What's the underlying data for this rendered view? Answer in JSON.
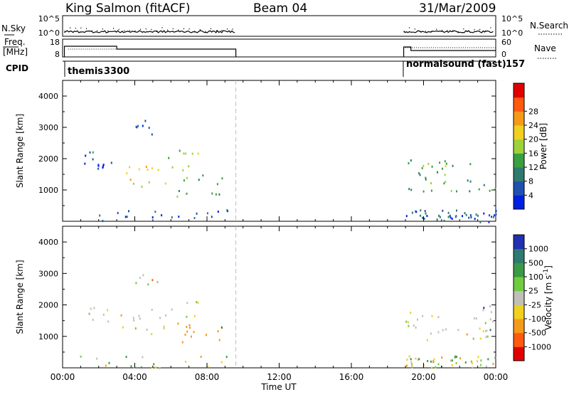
{
  "header": {
    "station": "King Salmon (fitACF)",
    "beam": "Beam 04",
    "date": "31/Mar/2009"
  },
  "status_panels": {
    "left_labels": {
      "nsky": "N.Sky",
      "freq": "Freq.",
      "freq_unit": "[MHz]",
      "cpid": "CPID"
    },
    "right_labels": {
      "nsearch": "N.Search",
      "nave": "Nave"
    },
    "nsky_ticks": [
      "10^5",
      "10^0"
    ],
    "freq_ticks": [
      "18",
      "8"
    ],
    "nave_ticks": [
      "60",
      "0"
    ],
    "nsearch_ticks": [
      "10^5",
      "10^0"
    ],
    "cpid_entries": [
      {
        "name": "themis",
        "id": "3300"
      },
      {
        "name": "normalsound (fast)",
        "id": "157"
      }
    ]
  },
  "chart_data": [
    {
      "type": "heatmap",
      "title": "",
      "xlabel": "Time UT",
      "ylabel": "Slant Range [km]",
      "xlim_hours": [
        0,
        24
      ],
      "ylim_km": [
        0,
        4500
      ],
      "x_ticks": [
        "00:00",
        "04:00",
        "08:00",
        "12:00",
        "16:00",
        "20:00",
        "00:00"
      ],
      "y_ticks": [
        1000,
        2000,
        3000,
        4000
      ],
      "colorbar": {
        "label": "Power [dB]",
        "ticks": [
          4,
          8,
          12,
          16,
          20,
          24,
          28
        ],
        "range": [
          0,
          30
        ],
        "colors": [
          "#0020e0",
          "#2050b0",
          "#2f7a70",
          "#39a040",
          "#9fd23a",
          "#f0d020",
          "#f59a18",
          "#ff5a10",
          "#e00000"
        ]
      },
      "data_gap_hours": [
        9.6,
        18.9
      ],
      "scatter_regions": [
        {
          "t": [
            0.5,
            2.8
          ],
          "r": [
            1500,
            2300
          ],
          "mean": 4
        },
        {
          "t": [
            3.0,
            5.8
          ],
          "r": [
            1100,
            1800
          ],
          "mean": 18
        },
        {
          "t": [
            5.8,
            7.5
          ],
          "r": [
            1500,
            2300
          ],
          "mean": 14
        },
        {
          "t": [
            6.2,
            9.0
          ],
          "r": [
            800,
            1500
          ],
          "mean": 12
        },
        {
          "t": [
            4.0,
            5.5
          ],
          "r": [
            2600,
            3300
          ],
          "mean": 6
        },
        {
          "t": [
            19.0,
            24.0
          ],
          "r": [
            900,
            2000
          ],
          "mean": 12
        }
      ]
    },
    {
      "type": "heatmap",
      "title": "",
      "xlabel": "Time UT",
      "ylabel": "Slant Range [km]",
      "xlim_hours": [
        0,
        24
      ],
      "ylim_km": [
        0,
        4500
      ],
      "x_ticks": [
        "00:00",
        "04:00",
        "08:00",
        "12:00",
        "16:00",
        "20:00",
        "00:00"
      ],
      "y_ticks": [
        1000,
        2000,
        3000,
        4000
      ],
      "colorbar": {
        "label": "Velocity [m s^-1]",
        "ticks": [
          "1000",
          "500",
          "100",
          "25",
          "-25",
          "-100",
          "-500",
          "-1000"
        ],
        "colors": [
          "#2030b0",
          "#2f7a70",
          "#3a9a45",
          "#70cc40",
          "#c0c0b8",
          "#f0d020",
          "#f59a18",
          "#ff5a10",
          "#e00000"
        ]
      },
      "data_gap_hours": [
        9.6,
        18.9
      ],
      "scatter_regions": [
        {
          "t": [
            0.5,
            2.8
          ],
          "r": [
            1500,
            2000
          ],
          "mean": 0
        },
        {
          "t": [
            3.0,
            5.8
          ],
          "r": [
            1100,
            1900
          ],
          "mean": 0
        },
        {
          "t": [
            5.8,
            7.5
          ],
          "r": [
            1600,
            2200
          ],
          "mean": 0
        },
        {
          "t": [
            6.3,
            9.0
          ],
          "r": [
            800,
            1600
          ],
          "mean": -150
        },
        {
          "t": [
            4.0,
            5.5
          ],
          "r": [
            2600,
            3300
          ],
          "mean": 0
        },
        {
          "t": [
            19.0,
            24.0
          ],
          "r": [
            900,
            2000
          ],
          "mean": 0
        }
      ]
    }
  ]
}
